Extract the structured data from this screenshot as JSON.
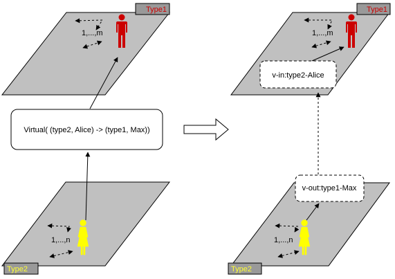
{
  "colors": {
    "plane_fill": "#c0c0c0",
    "plane_stroke": "#000000",
    "type1_person": "#cc0000",
    "type2_person": "#ffff00",
    "type1_tag_text": "#cc0000",
    "type2_tag_text": "#ffff33",
    "tag_fill": "#999999",
    "box_fill": "#ffffff"
  },
  "left": {
    "top_plane": {
      "tag": "Type1",
      "count_label": "1,...,m",
      "person_icon": "person-male-icon"
    },
    "bottom_plane": {
      "tag": "Type2",
      "count_label": "1,...,n",
      "person_icon": "person-female-icon"
    },
    "virtual_box": {
      "label": "Virtual( (type2, Alice) -> (type1, Max))"
    }
  },
  "transform_arrow_icon": "hollow-right-arrow-icon",
  "right": {
    "top_plane": {
      "tag": "Type1",
      "count_label": "1,...,m",
      "person_icon": "person-male-icon",
      "vertex_label": "v-in:type2-Alice"
    },
    "bottom_plane": {
      "tag": "Type2",
      "count_label": "1,...,n",
      "person_icon": "person-female-icon",
      "vertex_label": "v-out:type1-Max"
    }
  }
}
